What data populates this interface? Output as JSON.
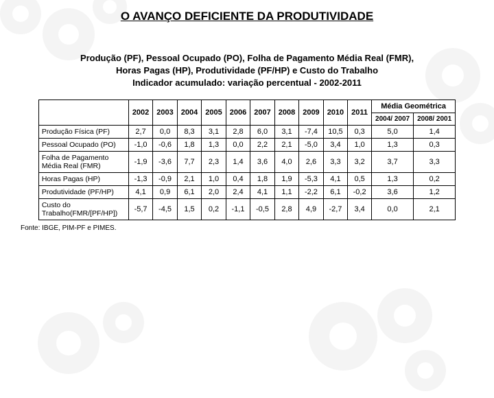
{
  "title": "O AVANÇO DEFICIENTE DA PRODUTIVIDADE",
  "header_line1": "Produção (PF), Pessoal Ocupado (PO), Folha de Pagamento Média Real (FMR),",
  "header_line2": "Horas Pagas (HP), Produtividade (PF/HP) e Custo do Trabalho",
  "header_line3": "Indicador acumulado: variação percentual - 2002-2011",
  "columns": {
    "years": [
      "2002",
      "2003",
      "2004",
      "2005",
      "2006",
      "2007",
      "2008",
      "2009",
      "2010",
      "2011"
    ],
    "geom_title": "Média Geométrica",
    "geom_sub1": "2004/ 2007",
    "geom_sub2": "2008/ 2001"
  },
  "rows": [
    {
      "label": "Produção Física (PF)",
      "vals": [
        "2,7",
        "0,0",
        "8,3",
        "3,1",
        "2,8",
        "6,0",
        "3,1",
        "-7,4",
        "10,5",
        "0,3",
        "5,0",
        "1,4"
      ]
    },
    {
      "label": "Pessoal Ocupado (PO)",
      "vals": [
        "-1,0",
        "-0,6",
        "1,8",
        "1,3",
        "0,0",
        "2,2",
        "2,1",
        "-5,0",
        "3,4",
        "1,0",
        "1,3",
        "0,3"
      ]
    },
    {
      "label": "Folha de Pagamento Média Real (FMR)",
      "vals": [
        "-1,9",
        "-3,6",
        "7,7",
        "2,3",
        "1,4",
        "3,6",
        "4,0",
        "2,6",
        "3,3",
        "3,2",
        "3,7",
        "3,3"
      ]
    },
    {
      "label": "Horas Pagas (HP)",
      "vals": [
        "-1,3",
        "-0,9",
        "2,1",
        "1,0",
        "0,4",
        "1,8",
        "1,9",
        "-5,3",
        "4,1",
        "0,5",
        "1,3",
        "0,2"
      ]
    },
    {
      "label": "Produtividade (PF/HP)",
      "vals": [
        "4,1",
        "0,9",
        "6,1",
        "2,0",
        "2,4",
        "4,1",
        "1,1",
        "-2,2",
        "6,1",
        "-0,2",
        "3,6",
        "1,2"
      ]
    },
    {
      "label": "Custo do Trabalho(FMR/[PF/HP])",
      "vals": [
        "-5,7",
        "-4,5",
        "1,5",
        "0,2",
        "-1,1",
        "-0,5",
        "2,8",
        "4,9",
        "-2,7",
        "3,4",
        "0,0",
        "2,1"
      ]
    }
  ],
  "source": "Fonte: IBGE, PIM-PF e PIMES.",
  "gear_color": "#b8b8b8"
}
